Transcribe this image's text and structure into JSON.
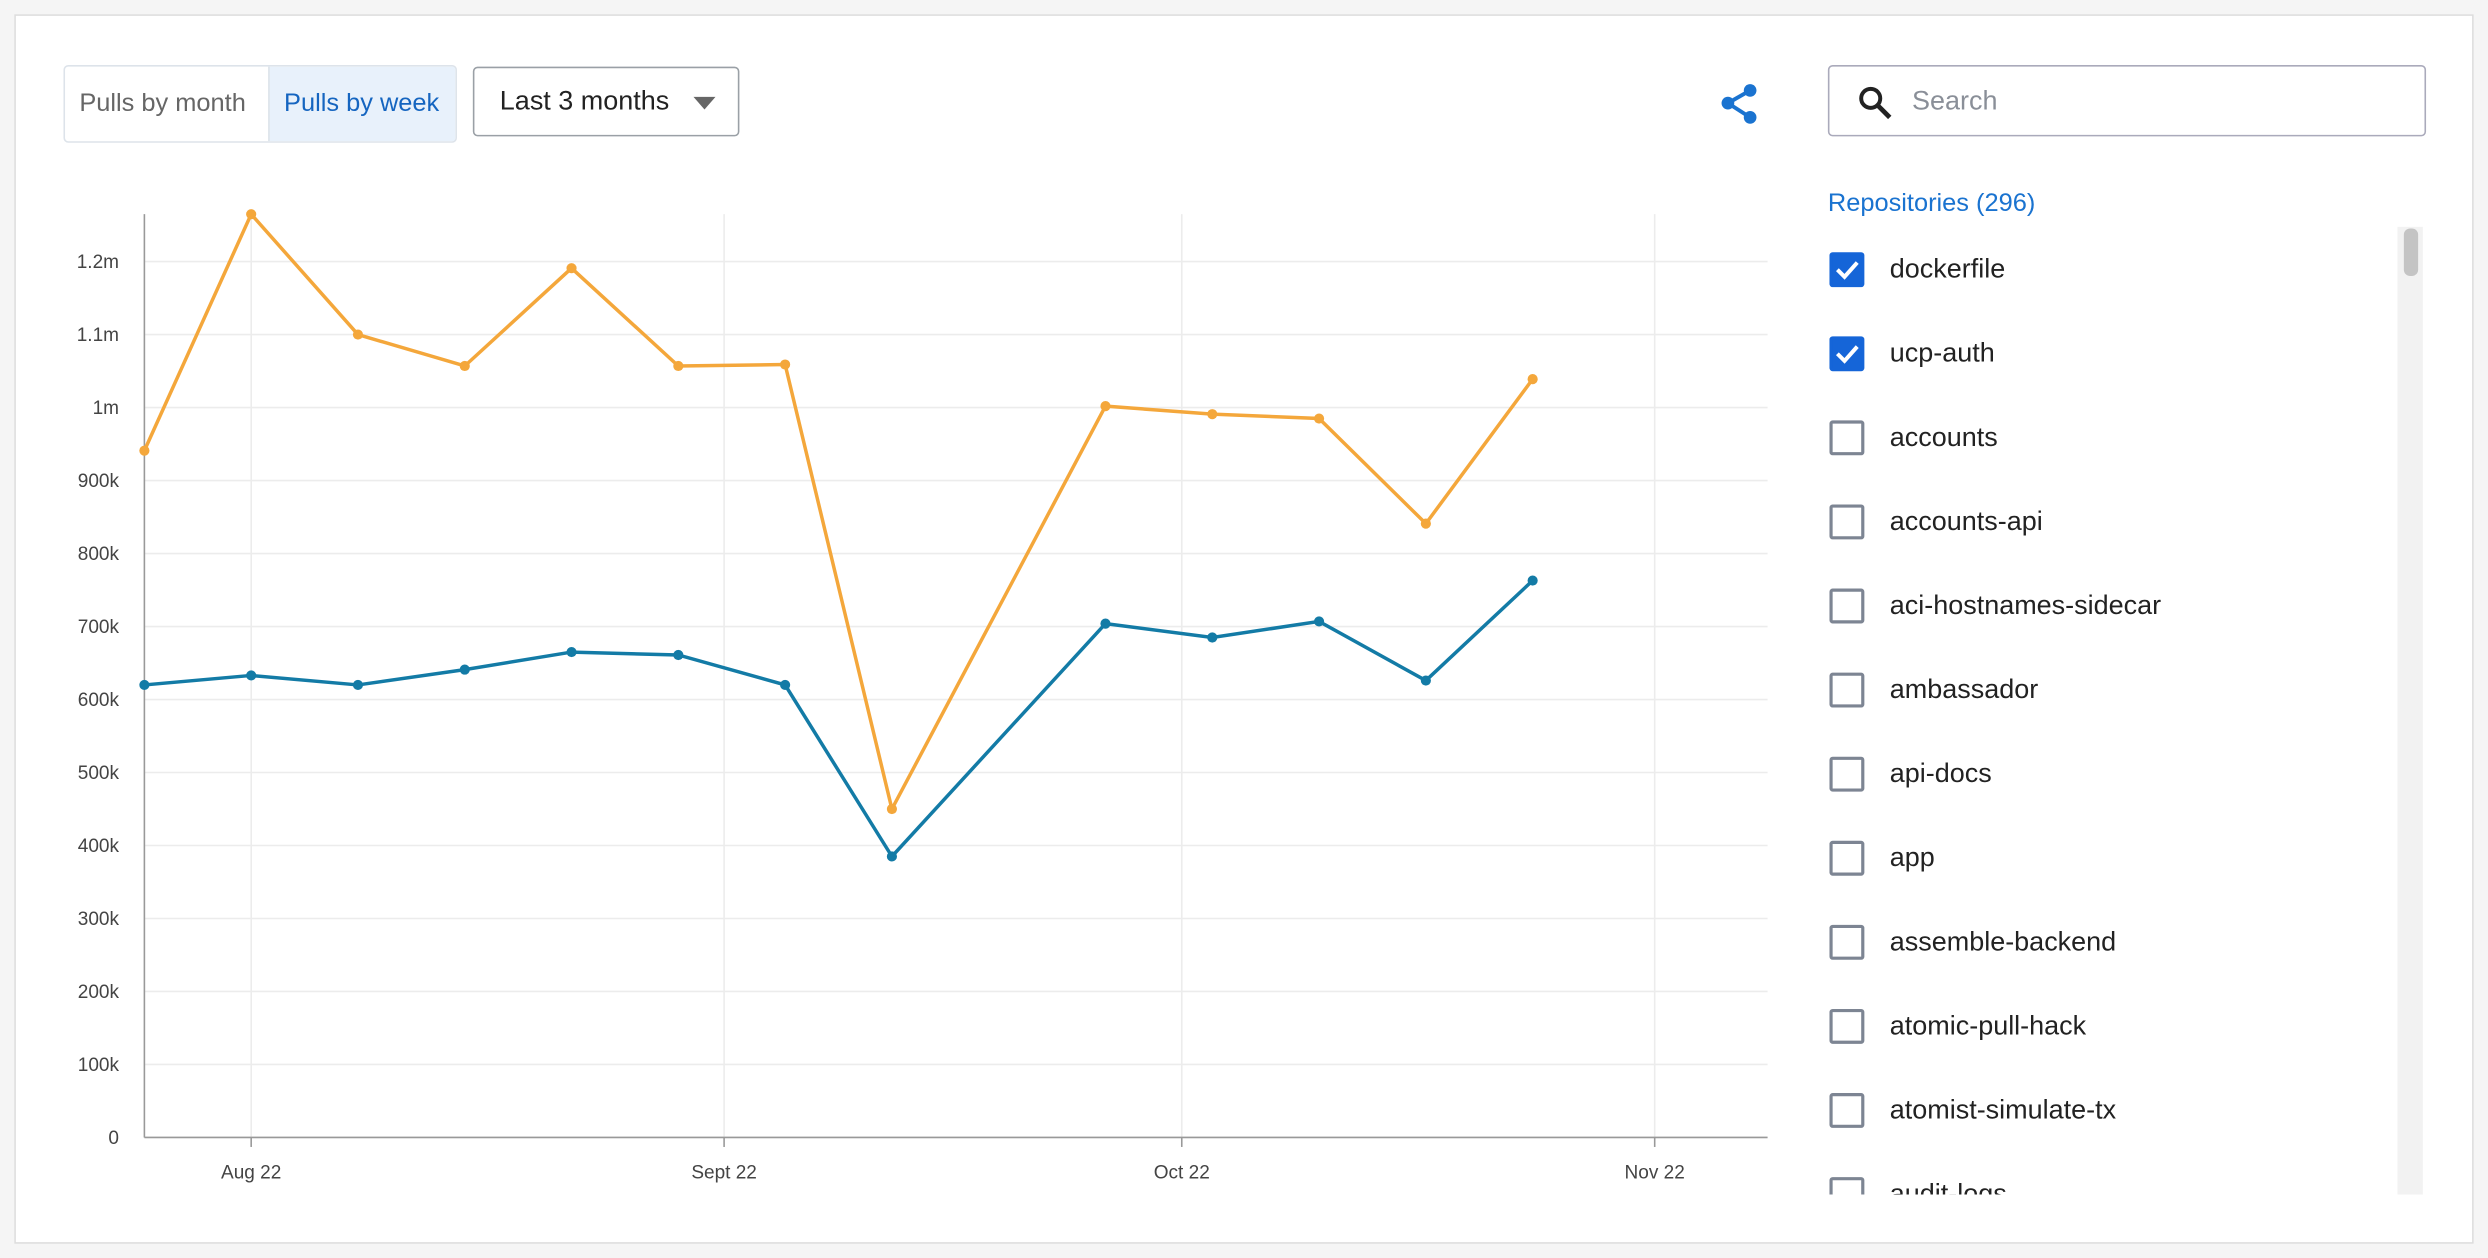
{
  "ui": {
    "tabs": [
      "Pulls by month",
      "Pulls by week"
    ],
    "active_tab": 1,
    "range_select": "Last 3 months",
    "search_placeholder": "Search",
    "repositories_heading": "Repositories (296)",
    "repositories": [
      {
        "label": "dockerfile",
        "checked": true
      },
      {
        "label": "ucp-auth",
        "checked": true
      },
      {
        "label": "accounts",
        "checked": false
      },
      {
        "label": "accounts-api",
        "checked": false
      },
      {
        "label": "aci-hostnames-sidecar",
        "checked": false
      },
      {
        "label": "ambassador",
        "checked": false
      },
      {
        "label": "api-docs",
        "checked": false
      },
      {
        "label": "app",
        "checked": false
      },
      {
        "label": "assemble-backend",
        "checked": false
      },
      {
        "label": "atomic-pull-hack",
        "checked": false
      },
      {
        "label": "atomist-simulate-tx",
        "checked": false
      },
      {
        "label": "audit-logs",
        "checked": false
      }
    ]
  },
  "chart_data": {
    "type": "line",
    "x": [
      -7,
      0,
      7,
      14,
      21,
      28,
      35,
      42,
      56,
      63,
      70,
      77,
      84
    ],
    "series": [
      {
        "color": "#f4a73b",
        "values": [
          941000,
          1265000,
          1100000,
          1057000,
          1191000,
          1057000,
          1059000,
          450000,
          1002000,
          991000,
          985000,
          841000,
          1039000
        ]
      },
      {
        "color": "#137ba6",
        "values": [
          620000,
          633000,
          620000,
          641000,
          665000,
          661000,
          620000,
          385000,
          704000,
          685000,
          707000,
          626000,
          763000
        ]
      }
    ],
    "xlim": [
      -7,
      99.4
    ],
    "xticks": [
      {
        "value": 0,
        "label": "Aug 22"
      },
      {
        "value": 31,
        "label": "Sept 22"
      },
      {
        "value": 61,
        "label": "Oct 22"
      },
      {
        "value": 92,
        "label": "Nov 22"
      }
    ],
    "ylim": [
      0,
      1265000
    ],
    "yticks": [
      0,
      {
        "value": 100000,
        "label": "100k"
      },
      {
        "value": 200000,
        "label": "200k"
      },
      {
        "value": 300000,
        "label": "300k"
      },
      {
        "value": 400000,
        "label": "400k"
      },
      {
        "value": 500000,
        "label": "500k"
      },
      {
        "value": 600000,
        "label": "600k"
      },
      {
        "value": 700000,
        "label": "700k"
      },
      {
        "value": 800000,
        "label": "800k"
      },
      {
        "value": 900000,
        "label": "900k"
      },
      {
        "value": 1000000,
        "label": "1m"
      },
      {
        "value": 1100000,
        "label": "1.1m"
      },
      {
        "value": 1200000,
        "label": "1.2m"
      }
    ],
    "grid": true
  }
}
